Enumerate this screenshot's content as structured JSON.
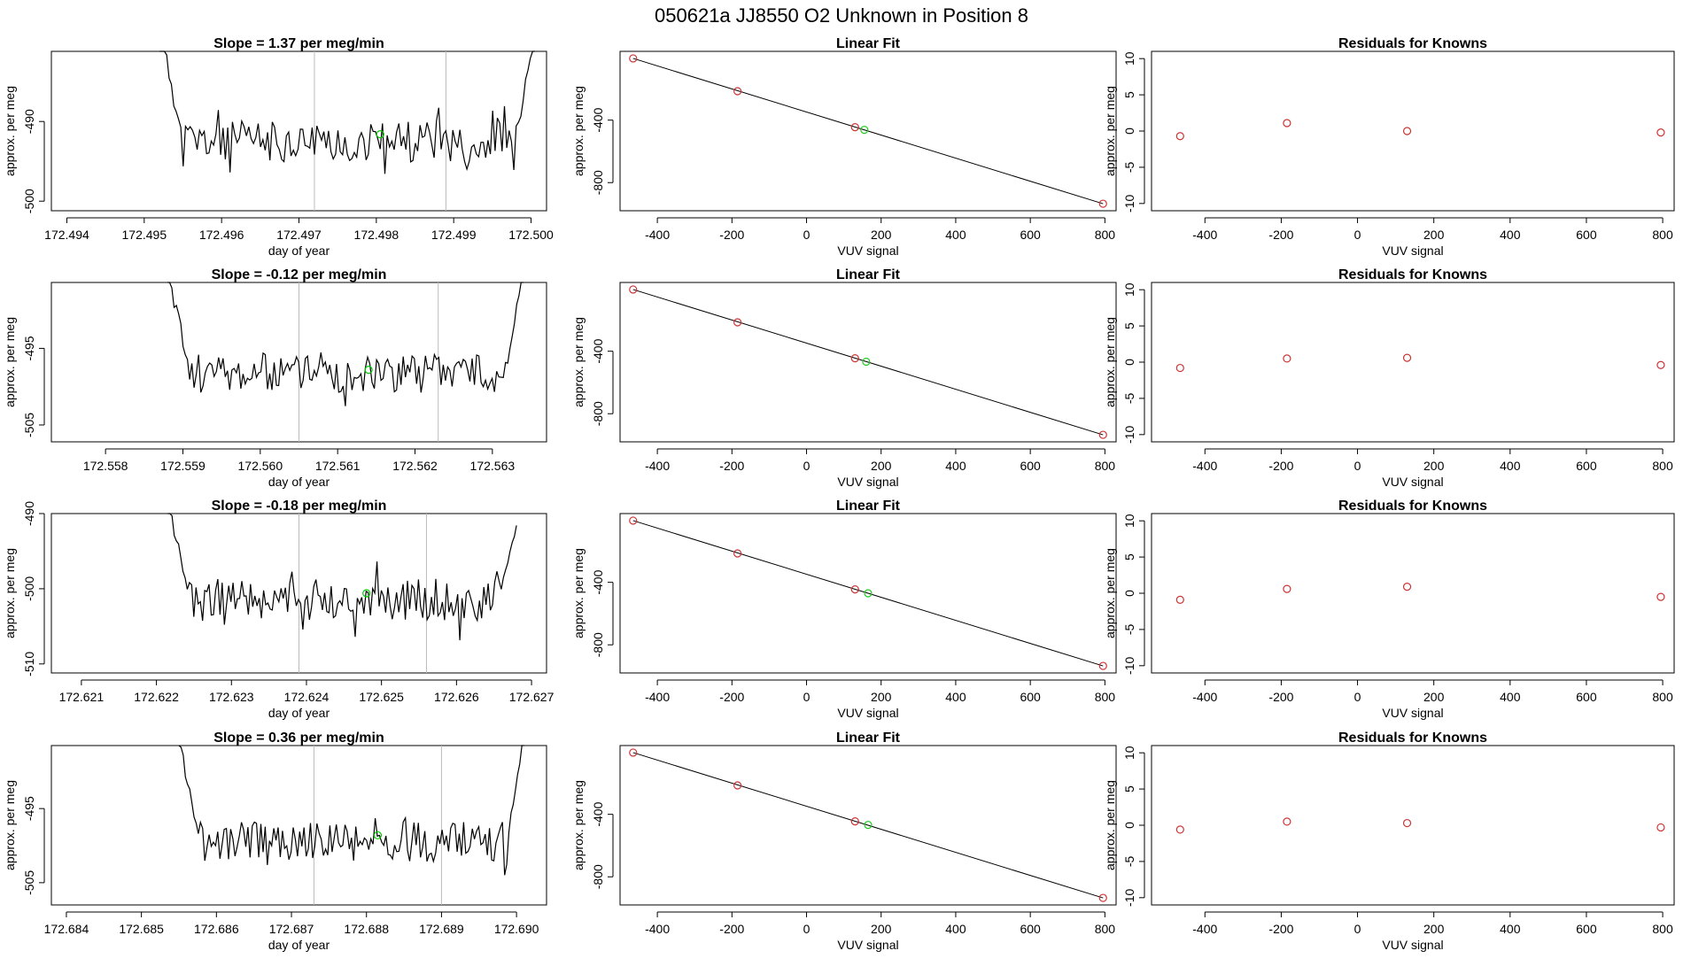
{
  "main_title": "050621a      JJ8550    O2 Unknown in Position  8",
  "chart_data": [
    {
      "type": "line",
      "title": "Slope =  1.37  per meg/min",
      "xlabel": "day of year",
      "ylabel": "approx. per meg",
      "xlim": [
        172.4938,
        172.5002
      ],
      "ylim": [
        -501.2,
        -481.2
      ],
      "xticks": [
        "172.494",
        "172.495",
        "172.496",
        "172.497",
        "172.498",
        "172.499",
        "172.500"
      ],
      "xtick_values": [
        172.494,
        172.495,
        172.496,
        172.497,
        172.498,
        172.499,
        172.5
      ],
      "yticks": [
        "-500",
        "-490"
      ],
      "ytick_values": [
        -500,
        -490
      ],
      "vlines": [
        172.4972,
        172.4989
      ],
      "start": 172.4952,
      "end": 172.50005,
      "seed": 11,
      "base": -492.5,
      "amp": 2.6,
      "edge_left": -478,
      "edge_right": -478,
      "marker": {
        "x": 172.49805,
        "y": -491.6,
        "color": "#00cc00"
      },
      "line_color": "#000000"
    },
    {
      "type": "line",
      "title": "Slope =  -0.12  per meg/min",
      "xlabel": "day of year",
      "ylabel": "approx. per meg",
      "xlim": [
        172.5573,
        172.5637
      ],
      "ylim": [
        -507.2,
        -486.4
      ],
      "xticks": [
        "172.558",
        "172.559",
        "172.560",
        "172.561",
        "172.562",
        "172.563"
      ],
      "xtick_values": [
        172.558,
        172.559,
        172.56,
        172.561,
        172.562,
        172.563
      ],
      "yticks": [
        "-505",
        "-495"
      ],
      "ytick_values": [
        -505,
        -495
      ],
      "vlines": [
        172.5605,
        172.5623
      ],
      "start": 172.5588,
      "end": 172.5634,
      "seed": 23,
      "base": -498.2,
      "amp": 2.6,
      "edge_left": -484,
      "edge_right": -484,
      "marker": {
        "x": 172.5614,
        "y": -497.8,
        "color": "#00cc00"
      },
      "line_color": "#000000"
    },
    {
      "type": "line",
      "title": "Slope =  -0.18  per meg/min",
      "xlabel": "day of year",
      "ylabel": "approx. per meg",
      "xlim": [
        172.6206,
        172.6272
      ],
      "ylim": [
        -511.2,
        -490.0
      ],
      "xticks": [
        "172.621",
        "172.622",
        "172.623",
        "172.624",
        "172.625",
        "172.626",
        "172.627"
      ],
      "xtick_values": [
        172.621,
        172.622,
        172.623,
        172.624,
        172.625,
        172.626,
        172.627
      ],
      "yticks": [
        "-510",
        "-500",
        "-490"
      ],
      "ytick_values": [
        -510,
        -500,
        -490
      ],
      "vlines": [
        172.6239,
        172.6256
      ],
      "start": 172.62215,
      "end": 172.6268,
      "seed": 37,
      "base": -501.5,
      "amp": 2.8,
      "edge_left": -488,
      "edge_right": -492,
      "marker": {
        "x": 172.6248,
        "y": -500.6,
        "color": "#00cc00"
      },
      "line_color": "#000000"
    },
    {
      "type": "line",
      "title": "Slope =  0.36  per meg/min",
      "xlabel": "day of year",
      "ylabel": "approx. per meg",
      "xlim": [
        172.6838,
        172.6904
      ],
      "ylim": [
        -508.0,
        -486.5
      ],
      "xticks": [
        "172.684",
        "172.685",
        "172.686",
        "172.687",
        "172.688",
        "172.689",
        "172.690"
      ],
      "xtick_values": [
        172.684,
        172.685,
        172.686,
        172.687,
        172.688,
        172.689,
        172.69
      ],
      "yticks": [
        "-505",
        "-495"
      ],
      "ytick_values": [
        -505,
        -495
      ],
      "vlines": [
        172.6873,
        172.689
      ],
      "start": 172.6855,
      "end": 172.6901,
      "seed": 53,
      "base": -499.5,
      "amp": 2.7,
      "edge_left": -485,
      "edge_right": -485,
      "marker": {
        "x": 172.68815,
        "y": -498.6,
        "color": "#00cc00"
      },
      "line_color": "#000000"
    }
  ],
  "fit_panels": [
    {
      "type": "scatter",
      "title": "Linear Fit",
      "xlabel": "VUV signal",
      "ylabel": "approx. per meg",
      "xlim": [
        -500,
        830
      ],
      "ylim": [
        -980,
        40
      ],
      "xticks": [
        "-400",
        "-200",
        "0",
        "200",
        "400",
        "600",
        "800"
      ],
      "xtick_values": [
        -400,
        -200,
        0,
        200,
        400,
        600,
        800
      ],
      "yticks": [
        "-800",
        "-400"
      ],
      "ytick_values": [
        -800,
        -400
      ],
      "line": {
        "x": [
          -465,
          795
        ],
        "y": [
          -5,
          -935
        ]
      },
      "points": [
        {
          "x": -465,
          "y": -5,
          "color": "#cc3333"
        },
        {
          "x": -185,
          "y": -215,
          "color": "#cc3333"
        },
        {
          "x": 130,
          "y": -445,
          "color": "#cc3333"
        },
        {
          "x": 795,
          "y": -935,
          "color": "#cc3333"
        },
        {
          "x": 155,
          "y": -462,
          "color": "#22cc22"
        }
      ]
    },
    {
      "type": "scatter",
      "title": "Linear Fit",
      "xlabel": "VUV signal",
      "ylabel": "approx. per meg",
      "xlim": [
        -500,
        830
      ],
      "ylim": [
        -980,
        40
      ],
      "xticks": [
        "-400",
        "-200",
        "0",
        "200",
        "400",
        "600",
        "800"
      ],
      "xtick_values": [
        -400,
        -200,
        0,
        200,
        400,
        600,
        800
      ],
      "yticks": [
        "-800",
        "-400"
      ],
      "ytick_values": [
        -800,
        -400
      ],
      "line": {
        "x": [
          -465,
          795
        ],
        "y": [
          -5,
          -935
        ]
      },
      "points": [
        {
          "x": -465,
          "y": -5,
          "color": "#cc3333"
        },
        {
          "x": -185,
          "y": -215,
          "color": "#cc3333"
        },
        {
          "x": 130,
          "y": -445,
          "color": "#cc3333"
        },
        {
          "x": 795,
          "y": -935,
          "color": "#cc3333"
        },
        {
          "x": 160,
          "y": -467,
          "color": "#22cc22"
        }
      ]
    },
    {
      "type": "scatter",
      "title": "Linear Fit",
      "xlabel": "VUV signal",
      "ylabel": "approx. per meg",
      "xlim": [
        -500,
        830
      ],
      "ylim": [
        -980,
        40
      ],
      "xticks": [
        "-400",
        "-200",
        "0",
        "200",
        "400",
        "600",
        "800"
      ],
      "xtick_values": [
        -400,
        -200,
        0,
        200,
        400,
        600,
        800
      ],
      "yticks": [
        "-800",
        "-400"
      ],
      "ytick_values": [
        -800,
        -400
      ],
      "line": {
        "x": [
          -465,
          795
        ],
        "y": [
          -5,
          -935
        ]
      },
      "points": [
        {
          "x": -465,
          "y": -5,
          "color": "#cc3333"
        },
        {
          "x": -185,
          "y": -215,
          "color": "#cc3333"
        },
        {
          "x": 130,
          "y": -445,
          "color": "#cc3333"
        },
        {
          "x": 795,
          "y": -935,
          "color": "#cc3333"
        },
        {
          "x": 165,
          "y": -470,
          "color": "#22cc22"
        }
      ]
    },
    {
      "type": "scatter",
      "title": "Linear Fit",
      "xlabel": "VUV signal",
      "ylabel": "approx. per meg",
      "xlim": [
        -500,
        830
      ],
      "ylim": [
        -980,
        40
      ],
      "xticks": [
        "-400",
        "-200",
        "0",
        "200",
        "400",
        "600",
        "800"
      ],
      "xtick_values": [
        -400,
        -200,
        0,
        200,
        400,
        600,
        800
      ],
      "yticks": [
        "-800",
        "-400"
      ],
      "ytick_values": [
        -800,
        -400
      ],
      "line": {
        "x": [
          -465,
          795
        ],
        "y": [
          -5,
          -935
        ]
      },
      "points": [
        {
          "x": -465,
          "y": -5,
          "color": "#cc3333"
        },
        {
          "x": -185,
          "y": -215,
          "color": "#cc3333"
        },
        {
          "x": 130,
          "y": -445,
          "color": "#cc3333"
        },
        {
          "x": 795,
          "y": -935,
          "color": "#cc3333"
        },
        {
          "x": 165,
          "y": -468,
          "color": "#22cc22"
        }
      ]
    }
  ],
  "resid_panels": [
    {
      "type": "scatter",
      "title": "Residuals for Knowns",
      "xlabel": "VUV signal",
      "ylabel": "approx. per meg",
      "xlim": [
        -540,
        830
      ],
      "ylim": [
        -11,
        11
      ],
      "xticks": [
        "-400",
        "-200",
        "0",
        "200",
        "400",
        "600",
        "800"
      ],
      "xtick_values": [
        -400,
        -200,
        0,
        200,
        400,
        600,
        800
      ],
      "yticks": [
        "-10",
        "-5",
        "0",
        "5",
        "10"
      ],
      "ytick_values": [
        -10,
        -5,
        0,
        5,
        10
      ],
      "points": [
        {
          "x": -465,
          "y": -0.7
        },
        {
          "x": -185,
          "y": 1.1
        },
        {
          "x": 130,
          "y": 0.0
        },
        {
          "x": 795,
          "y": -0.2
        }
      ],
      "point_color": "#cc3333"
    },
    {
      "type": "scatter",
      "title": "Residuals for Knowns",
      "xlabel": "VUV signal",
      "ylabel": "approx. per meg",
      "xlim": [
        -540,
        830
      ],
      "ylim": [
        -11,
        11
      ],
      "xticks": [
        "-400",
        "-200",
        "0",
        "200",
        "400",
        "600",
        "800"
      ],
      "xtick_values": [
        -400,
        -200,
        0,
        200,
        400,
        600,
        800
      ],
      "yticks": [
        "-10",
        "-5",
        "0",
        "5",
        "10"
      ],
      "ytick_values": [
        -10,
        -5,
        0,
        5,
        10
      ],
      "points": [
        {
          "x": -465,
          "y": -0.8
        },
        {
          "x": -185,
          "y": 0.5
        },
        {
          "x": 130,
          "y": 0.6
        },
        {
          "x": 795,
          "y": -0.4
        }
      ],
      "point_color": "#cc3333"
    },
    {
      "type": "scatter",
      "title": "Residuals for Knowns",
      "xlabel": "VUV signal",
      "ylabel": "approx. per meg",
      "xlim": [
        -540,
        830
      ],
      "ylim": [
        -11,
        11
      ],
      "xticks": [
        "-400",
        "-200",
        "0",
        "200",
        "400",
        "600",
        "800"
      ],
      "xtick_values": [
        -400,
        -200,
        0,
        200,
        400,
        600,
        800
      ],
      "yticks": [
        "-10",
        "-5",
        "0",
        "5",
        "10"
      ],
      "ytick_values": [
        -10,
        -5,
        0,
        5,
        10
      ],
      "points": [
        {
          "x": -465,
          "y": -0.9
        },
        {
          "x": -185,
          "y": 0.6
        },
        {
          "x": 130,
          "y": 0.9
        },
        {
          "x": 795,
          "y": -0.5
        }
      ],
      "point_color": "#cc3333"
    },
    {
      "type": "scatter",
      "title": "Residuals for Knowns",
      "xlabel": "VUV signal",
      "ylabel": "approx. per meg",
      "xlim": [
        -540,
        830
      ],
      "ylim": [
        -11,
        11
      ],
      "xticks": [
        "-400",
        "-200",
        "0",
        "200",
        "400",
        "600",
        "800"
      ],
      "xtick_values": [
        -400,
        -200,
        0,
        200,
        400,
        600,
        800
      ],
      "yticks": [
        "-10",
        "-5",
        "0",
        "5",
        "10"
      ],
      "ytick_values": [
        -10,
        -5,
        0,
        5,
        10
      ],
      "points": [
        {
          "x": -465,
          "y": -0.6
        },
        {
          "x": -185,
          "y": 0.5
        },
        {
          "x": 130,
          "y": 0.3
        },
        {
          "x": 795,
          "y": -0.3
        }
      ],
      "point_color": "#cc3333"
    }
  ]
}
